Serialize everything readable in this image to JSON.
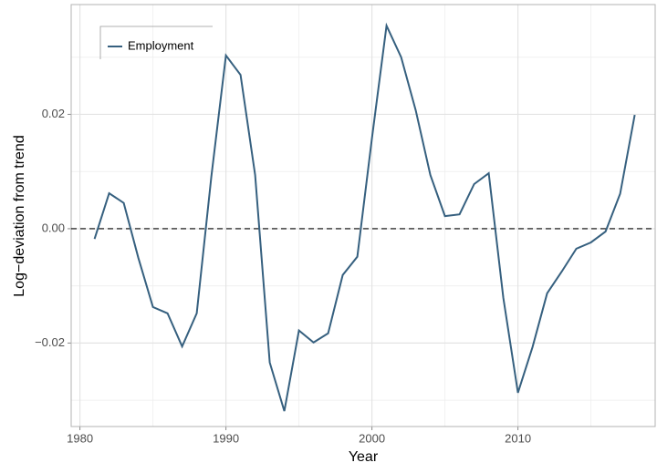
{
  "chart_data": {
    "type": "line",
    "x_label": "Year",
    "y_label": "Log−deviation from trend",
    "x": [
      1981,
      1982,
      1983,
      1984,
      1985,
      1986,
      1987,
      1988,
      1989,
      1990,
      1991,
      1992,
      1993,
      1994,
      1995,
      1996,
      1997,
      1998,
      1999,
      2000,
      2001,
      2002,
      2003,
      2004,
      2005,
      2006,
      2007,
      2008,
      2009,
      2010,
      2011,
      2012,
      2013,
      2014,
      2015,
      2016,
      2017,
      2018
    ],
    "series": [
      {
        "name": "Employment",
        "color": "#36607f",
        "values": [
          -0.0018,
          0.0062,
          0.0045,
          -0.0051,
          -0.0137,
          -0.0148,
          -0.0206,
          -0.0148,
          0.0091,
          0.0303,
          0.0269,
          0.0094,
          -0.0234,
          -0.0319,
          -0.0178,
          -0.0199,
          -0.0183,
          -0.0081,
          -0.0049,
          0.0158,
          0.0355,
          0.03,
          0.0207,
          0.0094,
          0.0022,
          0.0025,
          0.0078,
          0.0097,
          -0.0121,
          -0.0287,
          -0.0207,
          -0.0113,
          -0.0075,
          -0.0035,
          -0.0024,
          -0.0005,
          0.0061,
          0.0199
        ]
      }
    ],
    "xlim": [
      1979.4,
      2019.4
    ],
    "ylim": [
      -0.0346,
      0.0392
    ],
    "xticks": [
      1980,
      1990,
      2000,
      2010
    ],
    "yticks": [
      0.02,
      {
        "value": 0,
        "label": "0.00"
      },
      {
        "value": -0.02,
        "label": "−0.02"
      }
    ],
    "x_minor_grid": [
      1985,
      1995,
      2005,
      2015
    ],
    "y_minor_grid": [
      0.03,
      0.01,
      -0.01,
      -0.03
    ],
    "hline": 0,
    "grid": true,
    "legend": "top-left"
  }
}
